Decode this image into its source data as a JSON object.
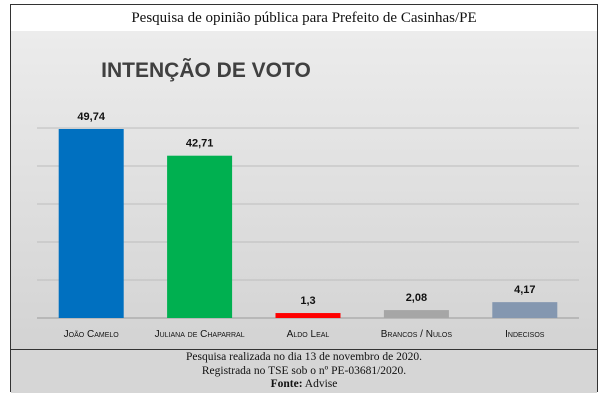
{
  "header": {
    "title": "Pesquisa de opinião pública para Prefeito de Casinhas/PE"
  },
  "chart_data": {
    "type": "bar",
    "title": "INTENÇÃO DE VOTO",
    "categories": [
      "João Camelo",
      "Juliana de Chaparral",
      "Aldo Leal",
      "Brancos / Nulos",
      "Indecisos"
    ],
    "values": [
      49.74,
      42.71,
      1.3,
      2.08,
      4.17
    ],
    "data_labels": [
      "49,74",
      "42,71",
      "1,3",
      "2,08",
      "4,17"
    ],
    "colors": [
      "#0070c0",
      "#00b050",
      "#ff0000",
      "#a6a6a6",
      "#8497b0"
    ],
    "ylim": [
      0,
      50
    ],
    "grid": true,
    "legend": "none"
  },
  "footer": {
    "line1": "Pesquisa realizada no dia 13 de novembro de 2020.",
    "line2": "Registrada no TSE sob o nº PE-03681/2020.",
    "source_label": "Fonte:",
    "source_value": "Advise"
  }
}
